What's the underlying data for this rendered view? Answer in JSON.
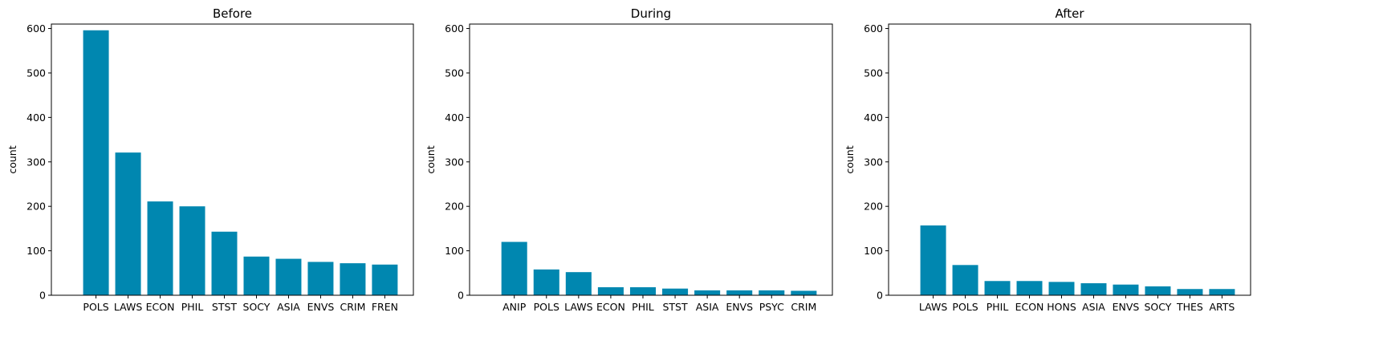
{
  "chart_data": [
    {
      "type": "bar",
      "title": "Before",
      "xlabel": "",
      "ylabel": "count",
      "ylim": [
        0,
        610
      ],
      "yticks": [
        0,
        100,
        200,
        300,
        400,
        500,
        600
      ],
      "categories": [
        "POLS",
        "LAWS",
        "ECON",
        "PHIL",
        "STST",
        "SOCY",
        "ASIA",
        "ENVS",
        "CRIM",
        "FREN"
      ],
      "values": [
        596,
        321,
        211,
        200,
        143,
        87,
        82,
        75,
        72,
        69
      ],
      "color": "#0087b0",
      "grid": false
    },
    {
      "type": "bar",
      "title": "During",
      "xlabel": "",
      "ylabel": "count",
      "ylim": [
        0,
        610
      ],
      "yticks": [
        0,
        100,
        200,
        300,
        400,
        500,
        600
      ],
      "categories": [
        "ANIP",
        "POLS",
        "LAWS",
        "ECON",
        "PHIL",
        "STST",
        "ASIA",
        "ENVS",
        "PSYC",
        "CRIM"
      ],
      "values": [
        120,
        58,
        52,
        18,
        18,
        15,
        11,
        11,
        11,
        10
      ],
      "color": "#0087b0",
      "grid": false
    },
    {
      "type": "bar",
      "title": "After",
      "xlabel": "",
      "ylabel": "count",
      "ylim": [
        0,
        610
      ],
      "yticks": [
        0,
        100,
        200,
        300,
        400,
        500,
        600
      ],
      "categories": [
        "LAWS",
        "POLS",
        "PHIL",
        "ECON",
        "HONS",
        "ASIA",
        "ENVS",
        "SOCY",
        "THES",
        "ARTS"
      ],
      "values": [
        157,
        68,
        32,
        32,
        30,
        27,
        24,
        20,
        14,
        14
      ],
      "color": "#0087b0",
      "grid": false
    }
  ]
}
